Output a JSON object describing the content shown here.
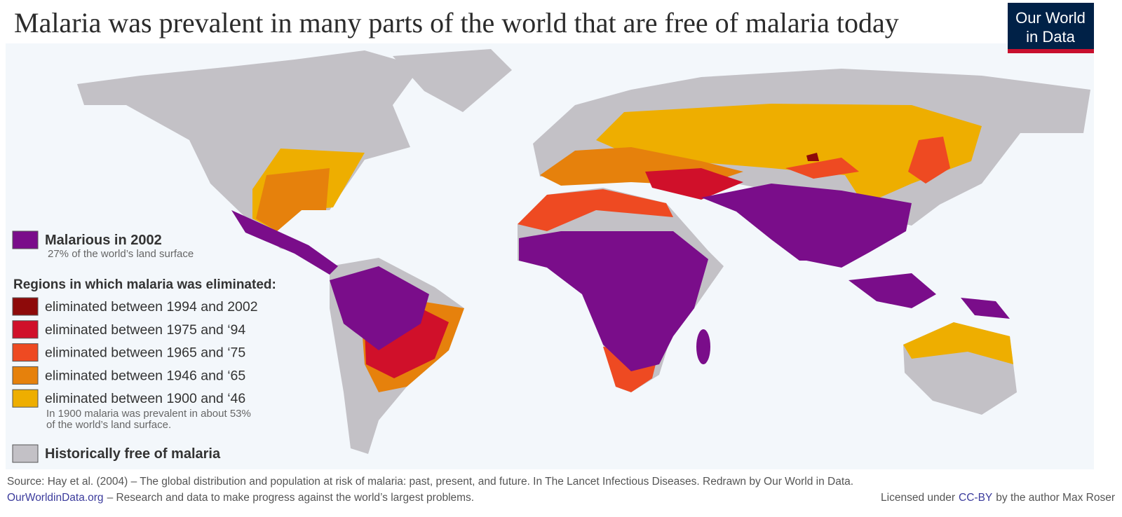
{
  "header": {
    "title": "Malaria was prevalent in many parts of the world that are free of malaria today",
    "logo": [
      "Our World",
      "in Data"
    ]
  },
  "legend": {
    "current": {
      "label": "Malarious in 2002",
      "note": "27% of the world’s land surface",
      "color": "#7a0d8a"
    },
    "heading": "Regions in which malaria was eliminated:",
    "items": [
      {
        "label": "eliminated between 1994 and 2002",
        "color": "#8e0a0a"
      },
      {
        "label": "eliminated between 1975 and ‘94",
        "color": "#d0102a"
      },
      {
        "label": "eliminated between 1965 and ‘75",
        "color": "#ee4a22"
      },
      {
        "label": "eliminated between 1946 and ‘65",
        "color": "#e6810c"
      },
      {
        "label": "eliminated between 1900 and ‘46",
        "color": "#eeae00"
      }
    ],
    "note": [
      "In 1900 malaria was prevalent in about 53%",
      "of the world’s land surface."
    ],
    "free": {
      "label": "Historically free of malaria",
      "color": "#c3c1c6"
    }
  },
  "footer": {
    "source": "Source: Hay et al. (2004) – The global distribution and population at risk of malaria: past, present, and future. In The Lancet Infectious Diseases. Redrawn by Our World in Data.",
    "site": "OurWorldinData.org",
    "tagline": "– Research and data to make progress against the world’s largest problems.",
    "license_prefix": "Licensed under",
    "license": "CC-BY",
    "license_suffix": "by the author Max Roser"
  }
}
